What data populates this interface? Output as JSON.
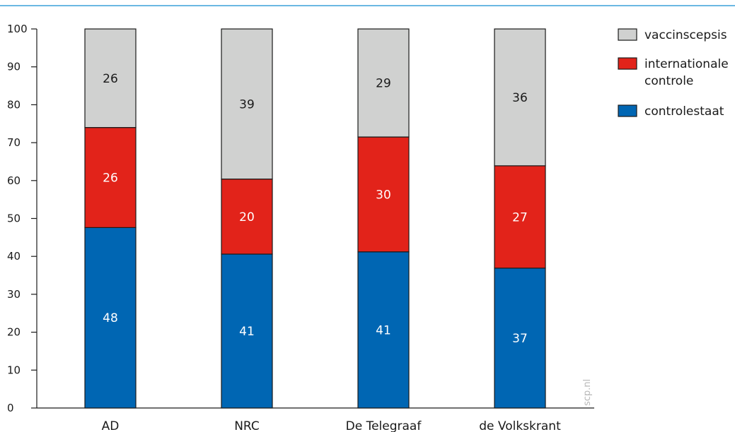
{
  "watermark": "scp.nl",
  "chart_data": {
    "type": "bar",
    "stacked": true,
    "categories": [
      "AD",
      "NRC",
      "De Telegraaf",
      "de Volkskrant"
    ],
    "series": [
      {
        "name": "controlestaat",
        "color": "#0066b3",
        "label_color": "#ffffff",
        "values": [
          48,
          41,
          41,
          37
        ]
      },
      {
        "name": "internationale controle",
        "color": "#e2231a",
        "label_color": "#ffffff",
        "values": [
          26,
          20,
          30,
          27
        ]
      },
      {
        "name": "vaccinscepsis",
        "color": "#d0d1d0",
        "label_color": "#1a1a1a",
        "values": [
          26,
          39,
          29,
          36
        ]
      }
    ],
    "display_bounds": [
      [
        47.6,
        74.0,
        100
      ],
      [
        40.6,
        60.4,
        100
      ],
      [
        41.2,
        71.5,
        100
      ],
      [
        36.9,
        63.9,
        100
      ]
    ],
    "ylim": [
      0,
      100
    ],
    "yticks": [
      0,
      10,
      20,
      30,
      40,
      50,
      60,
      70,
      80,
      90,
      100
    ],
    "legend": {
      "placement": "top-right",
      "entries": [
        {
          "label_lines": [
            "vaccinscepsis"
          ],
          "color": "#d0d1d0"
        },
        {
          "label_lines": [
            "internationale",
            "controle"
          ],
          "color": "#e2231a"
        },
        {
          "label_lines": [
            "controlestaat"
          ],
          "color": "#0066b3"
        }
      ]
    },
    "grid": false,
    "top_rule_color": "#3aa0d8"
  }
}
